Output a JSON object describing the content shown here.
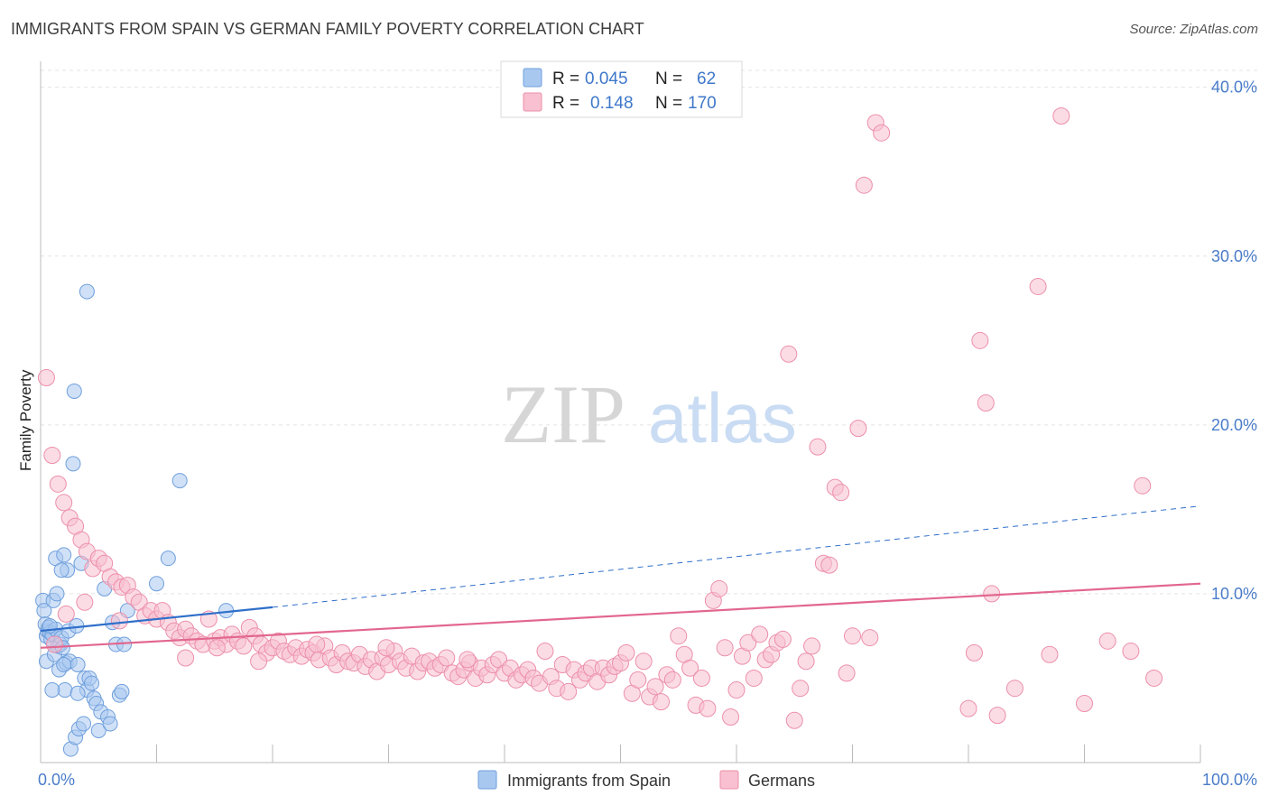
{
  "title": "IMMIGRANTS FROM SPAIN VS GERMAN FAMILY POVERTY CORRELATION CHART",
  "source": "Source: ZipAtlas.com",
  "watermark": {
    "zip": "ZIP",
    "atlas": "atlas"
  },
  "legend": {
    "r_label": "R =",
    "n_label": "N =",
    "series": [
      {
        "r": "0.045",
        "n": "62",
        "color": "#a9c8f0",
        "stroke": "#6f9fdc"
      },
      {
        "r": "0.148",
        "n": "170",
        "color": "#f8c0d0",
        "stroke": "#ec8faa"
      }
    ]
  },
  "bottom_legend": [
    "Immigrants from Spain",
    "Germans"
  ],
  "chart_data": {
    "type": "scatter",
    "title": "IMMIGRANTS FROM SPAIN VS GERMAN FAMILY POVERTY CORRELATION CHART",
    "xlabel": "",
    "ylabel": "Family Poverty",
    "xlim": [
      0,
      100
    ],
    "ylim": [
      0,
      40
    ],
    "x_tick_labels": [
      "0.0%",
      "100.0%"
    ],
    "y_ticks": [
      10,
      20,
      30,
      40
    ],
    "y_tick_labels": [
      "10.0%",
      "20.0%",
      "30.0%",
      "40.0%"
    ],
    "grid": true,
    "series": [
      {
        "name": "Immigrants from Spain",
        "color": "#a9c8f0",
        "stroke": "#6f9fdc",
        "points": [
          [
            0.2,
            9.6
          ],
          [
            0.3,
            9.0
          ],
          [
            0.4,
            8.2
          ],
          [
            0.5,
            7.5
          ],
          [
            0.5,
            6.0
          ],
          [
            0.6,
            7.8
          ],
          [
            0.7,
            8.0
          ],
          [
            0.8,
            7.7
          ],
          [
            0.9,
            7.3
          ],
          [
            1.0,
            7.6
          ],
          [
            1.1,
            9.6
          ],
          [
            1.2,
            6.4
          ],
          [
            1.3,
            7.9
          ],
          [
            1.3,
            12.1
          ],
          [
            1.4,
            10.0
          ],
          [
            1.5,
            6.9
          ],
          [
            1.6,
            5.5
          ],
          [
            1.7,
            7.0
          ],
          [
            1.8,
            7.4
          ],
          [
            1.9,
            6.8
          ],
          [
            2.0,
            12.3
          ],
          [
            2.1,
            4.3
          ],
          [
            2.2,
            5.9
          ],
          [
            2.3,
            11.4
          ],
          [
            2.4,
            7.8
          ],
          [
            2.5,
            6.0
          ],
          [
            2.6,
            0.8
          ],
          [
            2.8,
            17.7
          ],
          [
            2.9,
            22.0
          ],
          [
            3.0,
            1.5
          ],
          [
            3.1,
            8.1
          ],
          [
            3.2,
            5.8
          ],
          [
            3.3,
            2.0
          ],
          [
            3.5,
            11.8
          ],
          [
            3.7,
            2.3
          ],
          [
            3.8,
            5.0
          ],
          [
            4.0,
            4.3
          ],
          [
            4.2,
            5.0
          ],
          [
            4.4,
            4.7
          ],
          [
            4.6,
            3.8
          ],
          [
            4.8,
            3.5
          ],
          [
            5.0,
            1.9
          ],
          [
            5.2,
            3.0
          ],
          [
            5.5,
            10.3
          ],
          [
            5.8,
            2.7
          ],
          [
            6.0,
            2.3
          ],
          [
            6.2,
            8.3
          ],
          [
            6.5,
            7.0
          ],
          [
            6.8,
            4.0
          ],
          [
            7.0,
            4.2
          ],
          [
            7.2,
            7.0
          ],
          [
            7.5,
            9.0
          ],
          [
            4.0,
            27.9
          ],
          [
            10.0,
            10.6
          ],
          [
            12.0,
            16.7
          ],
          [
            11.0,
            12.1
          ],
          [
            3.2,
            4.1
          ],
          [
            1.0,
            4.3
          ],
          [
            2.0,
            5.8
          ],
          [
            0.8,
            8.1
          ],
          [
            16.0,
            9.0
          ],
          [
            1.8,
            11.4
          ]
        ]
      },
      {
        "name": "Germans",
        "color": "#f8c0d0",
        "stroke": "#ec8faa",
        "points": [
          [
            0.5,
            22.8
          ],
          [
            1.0,
            18.2
          ],
          [
            1.5,
            16.5
          ],
          [
            2.0,
            15.4
          ],
          [
            2.5,
            14.5
          ],
          [
            3.0,
            14.0
          ],
          [
            3.5,
            13.2
          ],
          [
            4.0,
            12.5
          ],
          [
            4.5,
            11.5
          ],
          [
            5.0,
            12.1
          ],
          [
            5.5,
            11.8
          ],
          [
            6.0,
            11.0
          ],
          [
            6.5,
            10.7
          ],
          [
            7.0,
            10.4
          ],
          [
            7.5,
            10.5
          ],
          [
            8.0,
            9.8
          ],
          [
            8.5,
            9.5
          ],
          [
            9.0,
            8.7
          ],
          [
            9.5,
            9.0
          ],
          [
            10.0,
            8.5
          ],
          [
            10.5,
            9.0
          ],
          [
            11.0,
            8.3
          ],
          [
            11.5,
            7.8
          ],
          [
            12.0,
            7.4
          ],
          [
            12.5,
            7.9
          ],
          [
            13.0,
            7.5
          ],
          [
            13.5,
            7.2
          ],
          [
            14.0,
            7.0
          ],
          [
            14.5,
            8.5
          ],
          [
            15.0,
            7.2
          ],
          [
            15.5,
            7.4
          ],
          [
            16.0,
            7.0
          ],
          [
            16.5,
            7.6
          ],
          [
            17.0,
            7.2
          ],
          [
            17.5,
            6.9
          ],
          [
            18.0,
            8.0
          ],
          [
            18.5,
            7.5
          ],
          [
            19.0,
            7.0
          ],
          [
            19.5,
            6.5
          ],
          [
            20.0,
            6.8
          ],
          [
            20.5,
            7.2
          ],
          [
            21.0,
            6.6
          ],
          [
            21.5,
            6.4
          ],
          [
            22.0,
            6.8
          ],
          [
            22.5,
            6.3
          ],
          [
            23.0,
            6.7
          ],
          [
            23.5,
            6.5
          ],
          [
            24.0,
            6.1
          ],
          [
            24.5,
            6.9
          ],
          [
            25.0,
            6.2
          ],
          [
            25.5,
            5.8
          ],
          [
            26.0,
            6.5
          ],
          [
            26.5,
            6.0
          ],
          [
            27.0,
            5.9
          ],
          [
            27.5,
            6.4
          ],
          [
            28.0,
            5.7
          ],
          [
            28.5,
            6.1
          ],
          [
            29.0,
            5.4
          ],
          [
            29.5,
            6.2
          ],
          [
            30.0,
            5.8
          ],
          [
            30.5,
            6.6
          ],
          [
            31.0,
            6.0
          ],
          [
            31.5,
            5.6
          ],
          [
            32.0,
            6.3
          ],
          [
            32.5,
            5.4
          ],
          [
            33.0,
            5.9
          ],
          [
            33.5,
            6.0
          ],
          [
            34.0,
            5.6
          ],
          [
            34.5,
            5.8
          ],
          [
            35.0,
            6.2
          ],
          [
            35.5,
            5.3
          ],
          [
            36.0,
            5.1
          ],
          [
            36.5,
            5.5
          ],
          [
            37.0,
            5.9
          ],
          [
            37.5,
            5.0
          ],
          [
            38.0,
            5.6
          ],
          [
            38.5,
            5.2
          ],
          [
            39.0,
            5.8
          ],
          [
            39.5,
            6.1
          ],
          [
            40.0,
            5.3
          ],
          [
            40.5,
            5.6
          ],
          [
            41.0,
            4.9
          ],
          [
            41.5,
            5.2
          ],
          [
            42.0,
            5.5
          ],
          [
            42.5,
            5.0
          ],
          [
            43.0,
            4.7
          ],
          [
            43.5,
            6.6
          ],
          [
            44.0,
            5.1
          ],
          [
            44.5,
            4.4
          ],
          [
            45.0,
            5.8
          ],
          [
            45.5,
            4.2
          ],
          [
            46.0,
            5.5
          ],
          [
            46.5,
            4.9
          ],
          [
            47.0,
            5.3
          ],
          [
            47.5,
            5.6
          ],
          [
            48.0,
            4.8
          ],
          [
            48.5,
            5.6
          ],
          [
            49.0,
            5.2
          ],
          [
            49.5,
            5.7
          ],
          [
            50.0,
            5.9
          ],
          [
            50.5,
            6.5
          ],
          [
            51.0,
            4.1
          ],
          [
            51.5,
            4.9
          ],
          [
            52.0,
            6.0
          ],
          [
            52.5,
            3.9
          ],
          [
            53.0,
            4.5
          ],
          [
            53.5,
            3.6
          ],
          [
            54.0,
            5.2
          ],
          [
            54.5,
            4.9
          ],
          [
            55.0,
            7.5
          ],
          [
            55.5,
            6.4
          ],
          [
            56.0,
            5.6
          ],
          [
            56.5,
            3.4
          ],
          [
            57.0,
            5.0
          ],
          [
            57.5,
            3.2
          ],
          [
            58.0,
            9.6
          ],
          [
            58.5,
            10.3
          ],
          [
            59.0,
            6.8
          ],
          [
            59.5,
            2.7
          ],
          [
            60.0,
            4.3
          ],
          [
            60.5,
            6.3
          ],
          [
            61.0,
            7.1
          ],
          [
            61.5,
            5.0
          ],
          [
            62.0,
            7.6
          ],
          [
            62.5,
            6.1
          ],
          [
            63.0,
            6.4
          ],
          [
            63.5,
            7.1
          ],
          [
            64.0,
            7.3
          ],
          [
            64.5,
            24.2
          ],
          [
            65.0,
            2.5
          ],
          [
            65.5,
            4.4
          ],
          [
            66.0,
            6.0
          ],
          [
            66.5,
            6.9
          ],
          [
            67.0,
            18.7
          ],
          [
            67.5,
            11.8
          ],
          [
            68.0,
            11.7
          ],
          [
            68.5,
            16.3
          ],
          [
            69.0,
            16.0
          ],
          [
            69.5,
            5.3
          ],
          [
            70.0,
            7.5
          ],
          [
            70.5,
            19.8
          ],
          [
            71.0,
            34.2
          ],
          [
            71.5,
            7.4
          ],
          [
            72.0,
            37.9
          ],
          [
            72.5,
            37.3
          ],
          [
            80.0,
            3.2
          ],
          [
            80.5,
            6.5
          ],
          [
            81.0,
            25.0
          ],
          [
            81.5,
            21.3
          ],
          [
            82.0,
            10.0
          ],
          [
            82.5,
            2.8
          ],
          [
            84.0,
            4.4
          ],
          [
            86.0,
            28.2
          ],
          [
            87.0,
            6.4
          ],
          [
            88.0,
            38.3
          ],
          [
            90.0,
            3.5
          ],
          [
            92.0,
            7.2
          ],
          [
            94.0,
            6.6
          ],
          [
            95.0,
            16.4
          ],
          [
            96.0,
            5.0
          ],
          [
            1.2,
            7.0
          ],
          [
            2.2,
            8.8
          ],
          [
            3.8,
            9.5
          ],
          [
            6.8,
            8.4
          ],
          [
            12.5,
            6.2
          ],
          [
            15.2,
            6.8
          ],
          [
            18.8,
            6.0
          ],
          [
            23.8,
            7.0
          ],
          [
            29.8,
            6.8
          ],
          [
            36.8,
            6.1
          ]
        ]
      }
    ],
    "trend_lines": [
      {
        "series": "Immigrants from Spain",
        "x": [
          0,
          20
        ],
        "y": [
          7.8,
          9.2
        ],
        "style": "solid",
        "extended_x": [
          20,
          100
        ],
        "extended_y": [
          9.2,
          15.2
        ],
        "extended_style": "dashed",
        "color": "#2f6fc9"
      },
      {
        "series": "Germans",
        "x": [
          0,
          100
        ],
        "y": [
          6.8,
          10.6
        ],
        "style": "solid",
        "color": "#e2678f"
      }
    ]
  }
}
